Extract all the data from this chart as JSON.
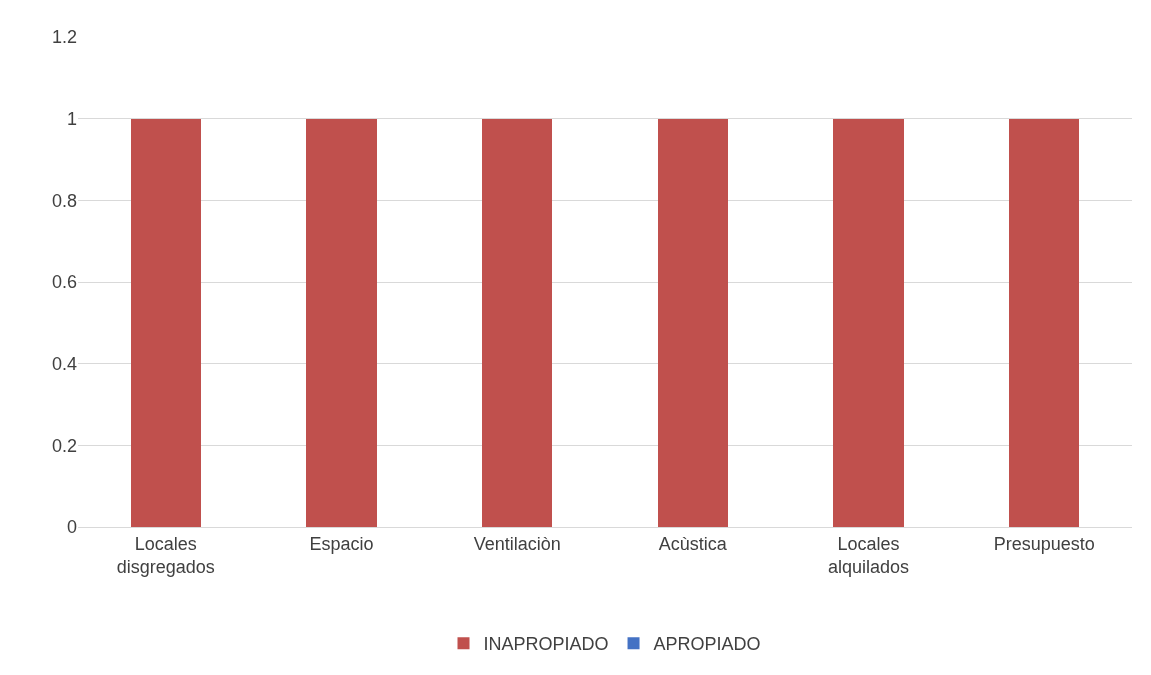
{
  "chart_data": {
    "type": "bar",
    "stacked": true,
    "categories": [
      "Locales disgregados",
      "Espacio",
      "Ventilaciòn",
      "Acùstica",
      "Locales alquilados",
      "Presupuesto"
    ],
    "series": [
      {
        "name": "APROPIADO",
        "color": "#4472c4",
        "values": [
          0,
          0,
          0,
          0,
          0,
          0
        ]
      },
      {
        "name": "INAPROPIADO",
        "color": "#c0504d",
        "values": [
          1,
          1,
          1,
          1,
          1,
          1
        ]
      }
    ],
    "ylim": [
      0,
      1.2
    ],
    "yticks": [
      0,
      0.2,
      0.4,
      0.6,
      0.8,
      1,
      1.2
    ],
    "grid": "y",
    "legend": "bottom"
  }
}
